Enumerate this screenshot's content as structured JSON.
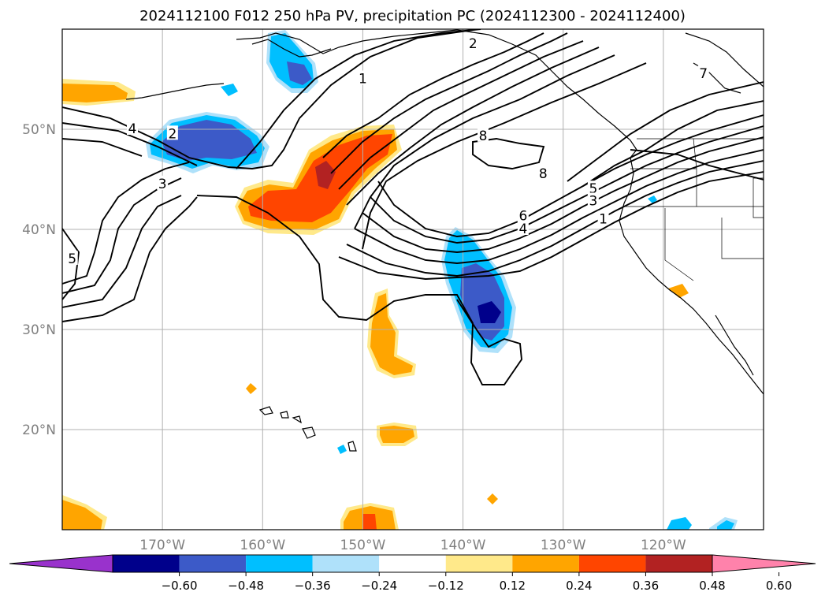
{
  "title": "2024112100 F012 250 hPa PV, precipitation PC (2024112300 - 2024112400)",
  "map": {
    "lon_range": [
      -180,
      -110
    ],
    "lat_range": [
      10,
      60
    ],
    "lat_labels": [
      {
        "value": 50,
        "text": "50°N"
      },
      {
        "value": 40,
        "text": "40°N"
      },
      {
        "value": 30,
        "text": "30°N"
      },
      {
        "value": 20,
        "text": "20°N"
      }
    ],
    "lon_labels": [
      {
        "value": -170,
        "text": "170°W"
      },
      {
        "value": -160,
        "text": "160°W"
      },
      {
        "value": -150,
        "text": "150°W"
      },
      {
        "value": -140,
        "text": "140°W"
      },
      {
        "value": -130,
        "text": "130°W"
      },
      {
        "value": -120,
        "text": "120°W"
      }
    ],
    "grid": true,
    "contour_labels": [
      {
        "text": "4",
        "lon": -173,
        "lat": 50
      },
      {
        "text": "2",
        "lon": -169,
        "lat": 49.5
      },
      {
        "text": "3",
        "lon": -170,
        "lat": 44.5
      },
      {
        "text": "5",
        "lon": -179,
        "lat": 37
      },
      {
        "text": "1",
        "lon": -150,
        "lat": 55
      },
      {
        "text": "2",
        "lon": -139,
        "lat": 58.5
      },
      {
        "text": "8",
        "lon": -138,
        "lat": 49.3
      },
      {
        "text": "8",
        "lon": -132,
        "lat": 45.5
      },
      {
        "text": "7",
        "lon": -116,
        "lat": 55.5
      },
      {
        "text": "5",
        "lon": -127,
        "lat": 44
      },
      {
        "text": "3",
        "lon": -127,
        "lat": 42.8
      },
      {
        "text": "1",
        "lon": -126,
        "lat": 41
      },
      {
        "text": "6",
        "lon": -134,
        "lat": 41.3
      },
      {
        "text": "4",
        "lon": -134,
        "lat": 40
      }
    ],
    "colors": {
      "positive": [
        "#ffe98a",
        "#ffa500",
        "#ff4500",
        "#b22222",
        "#ff82ab"
      ],
      "negative": [
        "#afe1fa",
        "#00bfff",
        "#3c5ac8",
        "#00008b",
        "#9932cc"
      ]
    }
  },
  "colorbar": {
    "colors": [
      "#9932cc",
      "#00008b",
      "#3c5ac8",
      "#00bfff",
      "#afe1fa",
      "#ffffff",
      "#ffe98a",
      "#ffa500",
      "#ff4500",
      "#b22222",
      "#ff82ab"
    ],
    "labels": [
      "−0.60",
      "−0.48",
      "−0.36",
      "−0.24",
      "−0.12",
      "0.12",
      "0.24",
      "0.36",
      "0.48",
      "0.60"
    ]
  }
}
